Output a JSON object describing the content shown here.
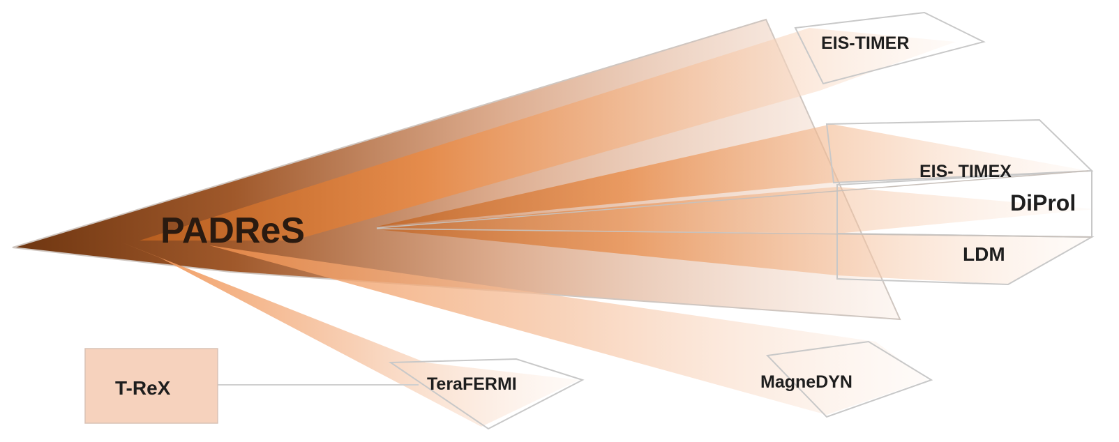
{
  "hub": {
    "label": "PADReS"
  },
  "branches": {
    "eis_timer": "EIS-TIMER",
    "eis_timex": "EIS- TIMEX",
    "diprol": "DiProl",
    "ldm": "LDM",
    "magnedyn": "MagneDYN",
    "terafermi": "TeraFERMI"
  },
  "side_box": {
    "label": "T-ReX"
  },
  "colors": {
    "hub_dark": "#7a3d12",
    "beam_orange": "#e8843e",
    "beam_light": "#f7d9c6",
    "box_fill": "#f6d2bd",
    "outline": "#c8c8c8"
  }
}
